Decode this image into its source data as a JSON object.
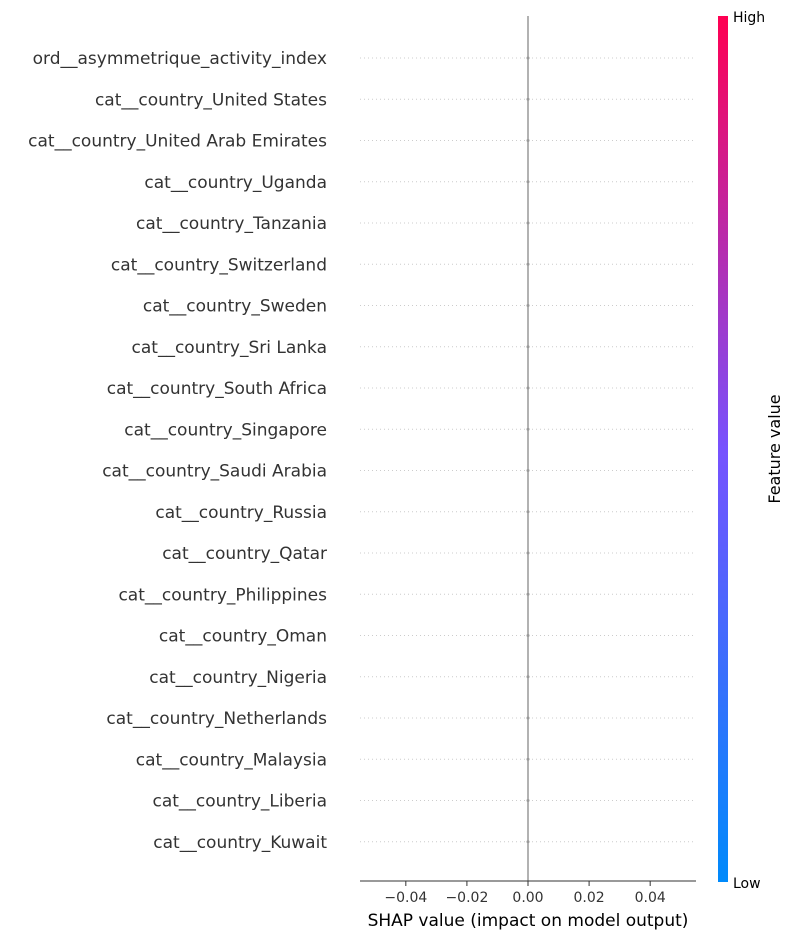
{
  "chart_data": {
    "type": "scatter",
    "title": "",
    "features": [
      "ord__asymmetrique_activity_index",
      "cat__country_United States",
      "cat__country_United Arab Emirates",
      "cat__country_Uganda",
      "cat__country_Tanzania",
      "cat__country_Switzerland",
      "cat__country_Sweden",
      "cat__country_Sri Lanka",
      "cat__country_South Africa",
      "cat__country_Singapore",
      "cat__country_Saudi Arabia",
      "cat__country_Russia",
      "cat__country_Qatar",
      "cat__country_Philippines",
      "cat__country_Oman",
      "cat__country_Nigeria",
      "cat__country_Netherlands",
      "cat__country_Malaysia",
      "cat__country_Liberia",
      "cat__country_Kuwait"
    ],
    "shap_values": [
      0,
      0,
      0,
      0,
      0,
      0,
      0,
      0,
      0,
      0,
      0,
      0,
      0,
      0,
      0,
      0,
      0,
      0,
      0,
      0
    ],
    "xlabel": "SHAP value (impact on model output)",
    "xlim": [
      -0.055,
      0.055
    ],
    "xticks": [
      -0.04,
      -0.02,
      0.0,
      0.02,
      0.04
    ],
    "xtick_labels": [
      "−0.04",
      "−0.02",
      "0.00",
      "0.02",
      "0.04"
    ],
    "zero_line": true,
    "colorbar": {
      "title": "Feature value",
      "high_label": "High",
      "low_label": "Low",
      "colors": [
        "#008afb",
        "#7752fe",
        "#ff0052"
      ]
    }
  }
}
